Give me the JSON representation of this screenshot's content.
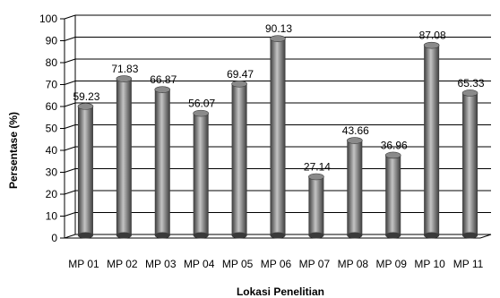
{
  "chart_data": {
    "type": "bar",
    "categories": [
      "MP 01",
      "MP 02",
      "MP 03",
      "MP 04",
      "MP 05",
      "MP 06",
      "MP 07",
      "MP 08",
      "MP 09",
      "MP 10",
      "MP 11"
    ],
    "values": [
      59.23,
      71.83,
      66.87,
      56.07,
      69.47,
      90.13,
      27.14,
      43.66,
      36.96,
      87.08,
      65.33
    ],
    "data_labels": [
      "59.23",
      "71.83",
      "66.87",
      "56.07",
      "69.47",
      "90.13",
      "27.14",
      "43.66",
      "36.96",
      "87.08",
      "65.33"
    ],
    "title": "",
    "xlabel": "Lokasi Penelitian",
    "ylabel": "Persentase (%)",
    "ylim": [
      0,
      100
    ],
    "yticks": [
      "0",
      "10",
      "20",
      "30",
      "40",
      "50",
      "60",
      "70",
      "80",
      "90",
      "100"
    ],
    "grid": true,
    "legend": "none",
    "bar_shape": "3d-cylinder",
    "colors": {
      "bar_dark": "#3a3a3a",
      "bar_mid": "#8a8a8a",
      "bar_light": "#c4c4c4",
      "gridline": "#000000"
    }
  }
}
